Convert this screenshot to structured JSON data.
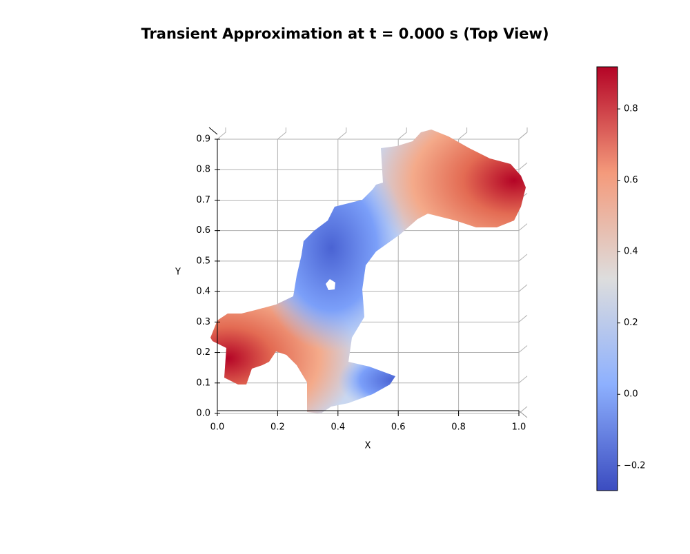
{
  "chart_data": {
    "type": "surface",
    "title": "Transient Approximation at t = 0.000 s (Top View)",
    "x_label": "X",
    "y_label": "Y",
    "xlim": [
      0,
      1
    ],
    "ylim": [
      0,
      0.9
    ],
    "xticks": [
      {
        "value": 0,
        "label": "0.0"
      },
      0.2,
      0.4,
      0.6,
      0.8,
      {
        "value": 1,
        "label": "1.0"
      }
    ],
    "yticks": [
      {
        "value": 0,
        "label": "0.0"
      },
      0.1,
      0.2,
      0.3,
      0.4,
      0.5,
      0.6,
      0.7,
      0.8,
      0.9
    ],
    "grid": true,
    "colorbar": {
      "lim": [
        -0.27,
        0.918
      ],
      "ticks": [
        {
          "value": -0.2,
          "label": "−0.2"
        },
        {
          "value": 0,
          "label": "0.0"
        },
        0.2,
        0.4,
        0.6,
        0.8
      ]
    }
  }
}
